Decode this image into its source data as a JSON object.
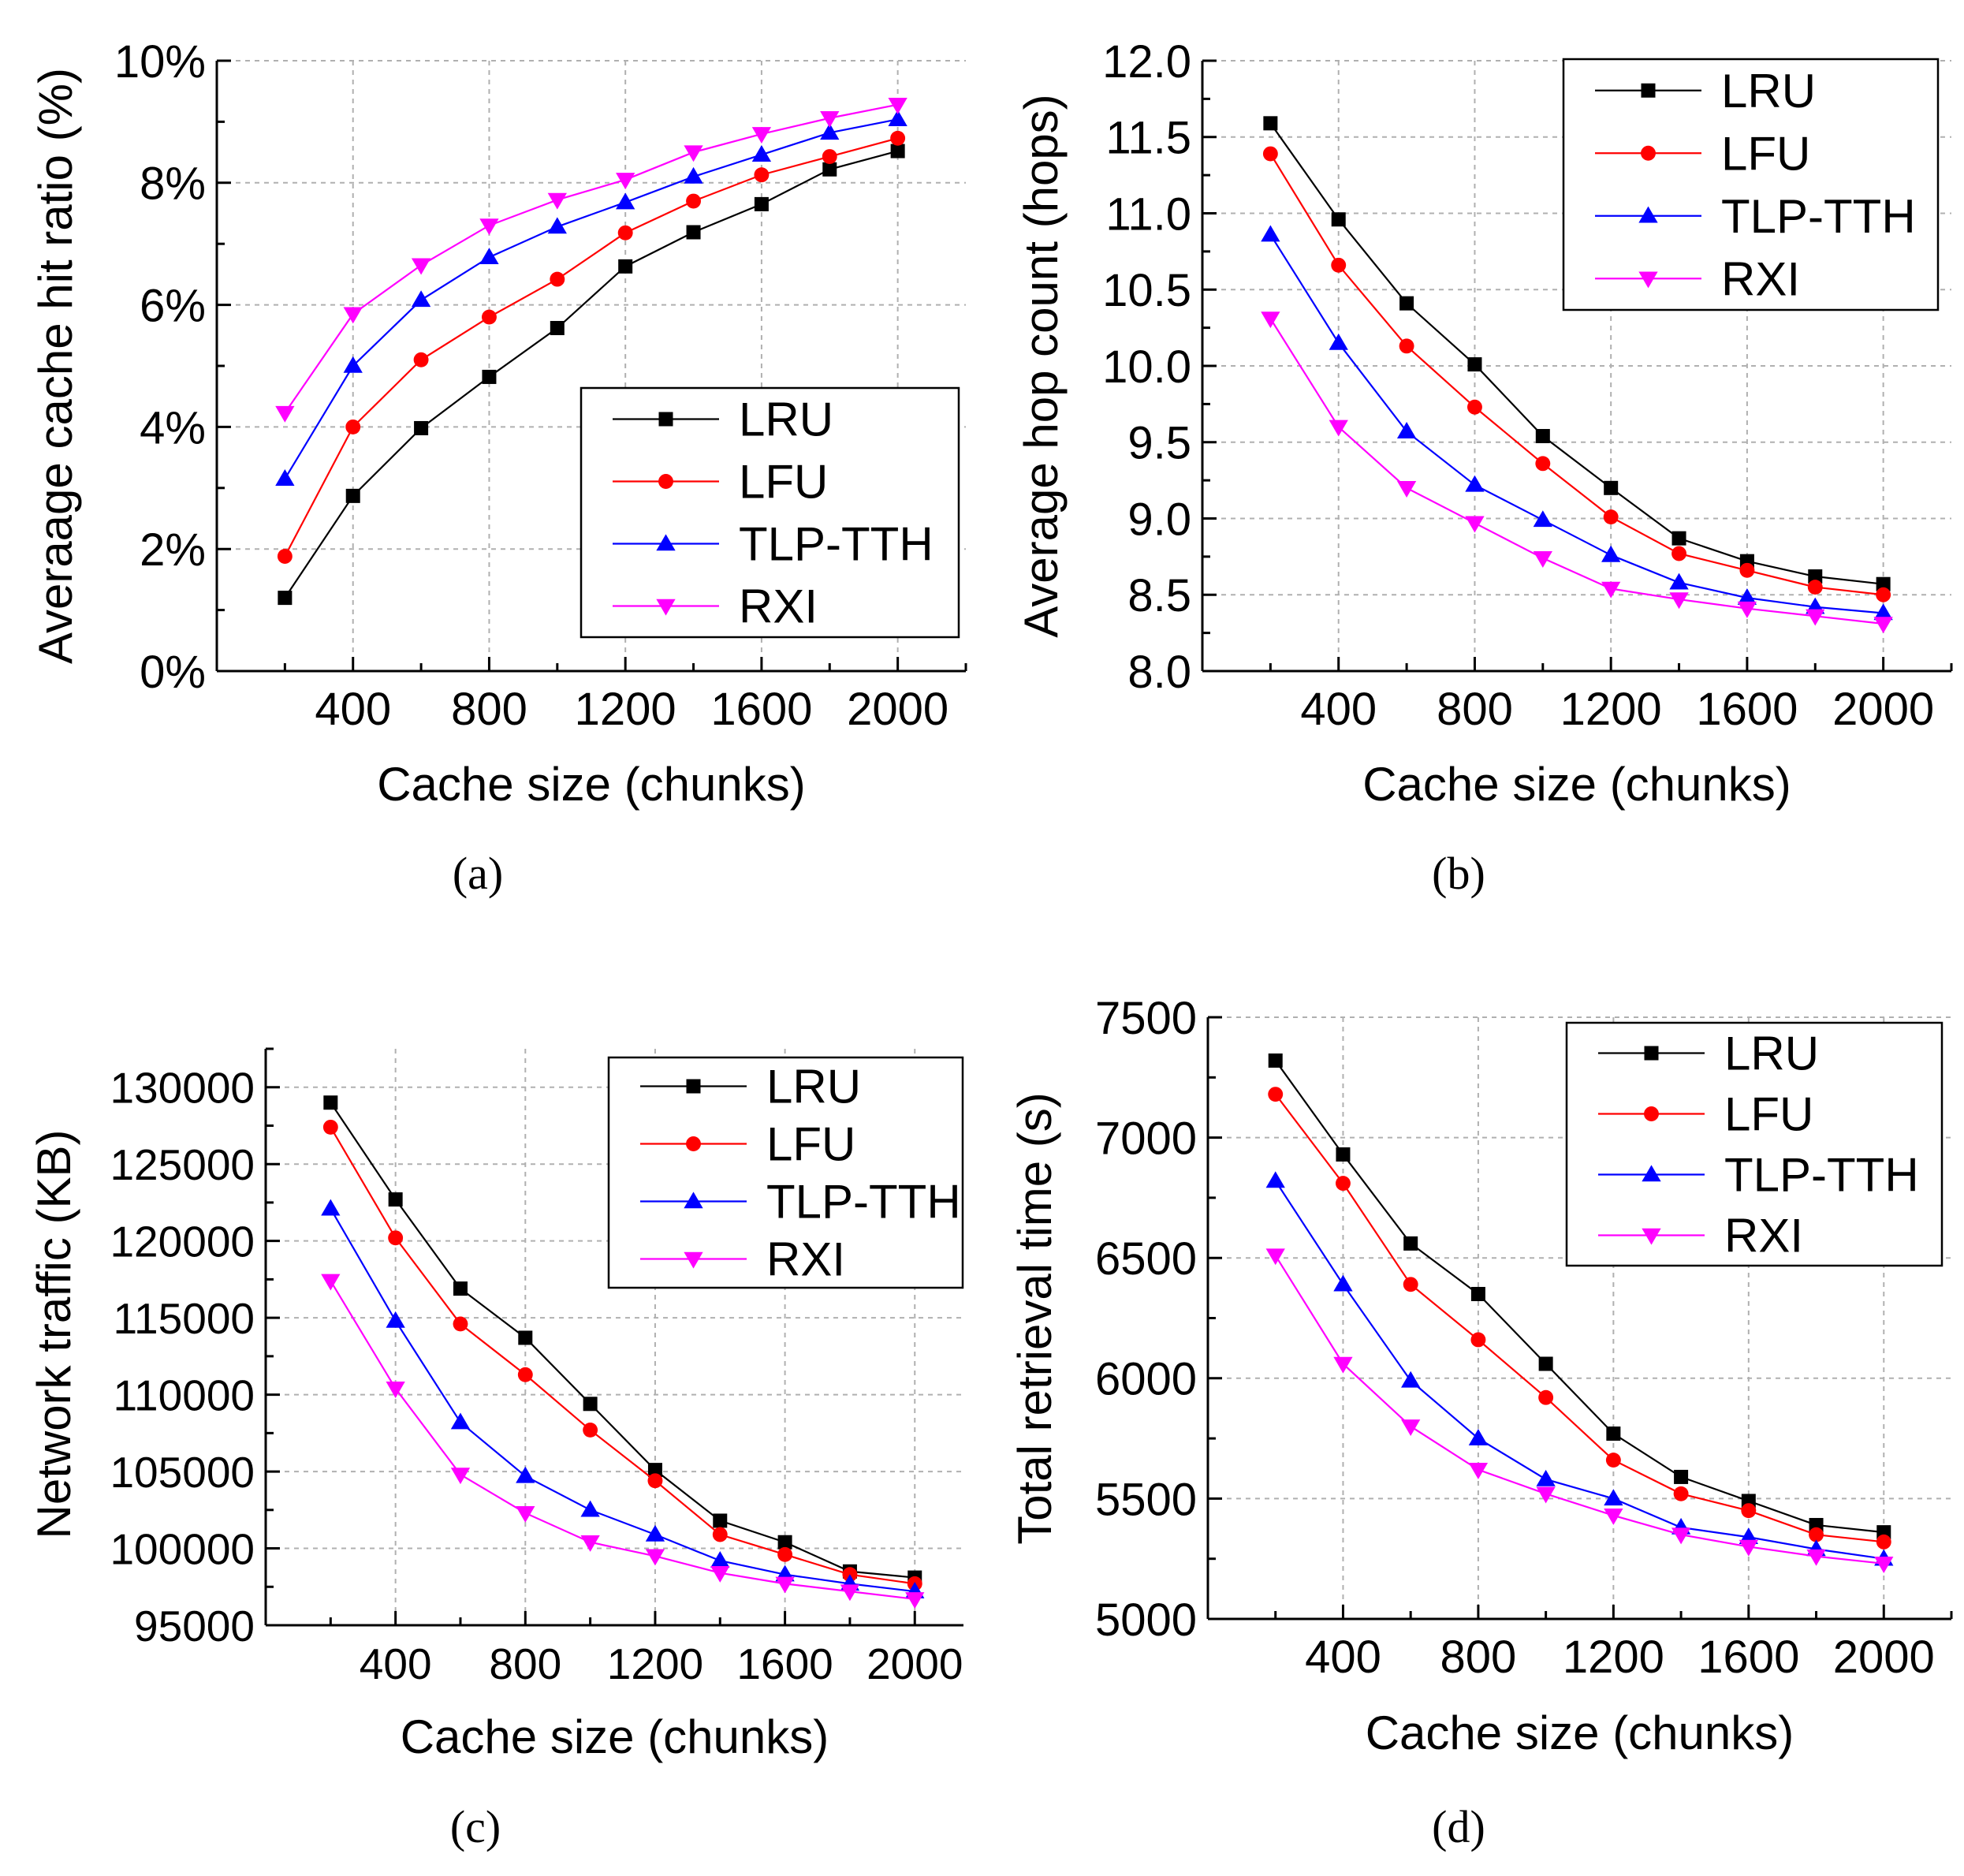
{
  "colors": {
    "LRU": "#000000",
    "LFU": "#ff0000",
    "TLP-TTH": "#0000ff",
    "RXI": "#ff00ff"
  },
  "chart_data": [
    {
      "type": "line",
      "caption": "(a)",
      "xlabel": "Cache size (chunks)",
      "ylabel": "Averaage cache hit ratio (%)",
      "x": [
        200,
        400,
        600,
        800,
        1000,
        1200,
        1400,
        1600,
        1800,
        2000
      ],
      "xlim": [
        0,
        2200
      ],
      "xticks": [
        400,
        800,
        1200,
        1600,
        2000
      ],
      "xtick_labels": [
        "400",
        "800",
        "1200",
        "1600",
        "2000"
      ],
      "ylim": [
        0,
        10
      ],
      "yticks": [
        0,
        2,
        4,
        6,
        8,
        10
      ],
      "ytick_labels": [
        "0%",
        "2%",
        "4%",
        "6%",
        "8%",
        "10%"
      ],
      "legend_position": "lower-right",
      "grid": true,
      "series": [
        {
          "name": "LRU",
          "marker": "square",
          "values": [
            1.2,
            2.87,
            3.98,
            4.82,
            5.62,
            6.63,
            7.19,
            7.65,
            8.22,
            8.52
          ]
        },
        {
          "name": "LFU",
          "marker": "circle",
          "values": [
            1.88,
            4.0,
            5.1,
            5.8,
            6.42,
            7.18,
            7.7,
            8.13,
            8.43,
            8.73
          ]
        },
        {
          "name": "TLP-TTH",
          "marker": "triangle-up",
          "values": [
            3.15,
            5.0,
            6.08,
            6.78,
            7.28,
            7.68,
            8.1,
            8.46,
            8.82,
            9.04
          ]
        },
        {
          "name": "RXI",
          "marker": "triangle-down",
          "values": [
            4.23,
            5.85,
            6.65,
            7.3,
            7.72,
            8.05,
            8.5,
            8.8,
            9.06,
            9.28
          ]
        }
      ]
    },
    {
      "type": "line",
      "caption": "(b)",
      "xlabel": "Cache size (chunks)",
      "ylabel": "Average hop count (hops)",
      "x": [
        200,
        400,
        600,
        800,
        1000,
        1200,
        1400,
        1600,
        1800,
        2000
      ],
      "xlim": [
        0,
        2200
      ],
      "xticks": [
        400,
        800,
        1200,
        1600,
        2000
      ],
      "xtick_labels": [
        "400",
        "800",
        "1200",
        "1600",
        "2000"
      ],
      "ylim": [
        8.0,
        12.0
      ],
      "yticks": [
        8.0,
        8.5,
        9.0,
        9.5,
        10.0,
        10.5,
        11.0,
        11.5,
        12.0
      ],
      "ytick_labels": [
        "8.0",
        "8.5",
        "9.0",
        "9.5",
        "10.0",
        "10.5",
        "11.0",
        "11.5",
        "12.0"
      ],
      "legend_position": "top-right",
      "grid": true,
      "series": [
        {
          "name": "LRU",
          "marker": "square",
          "values": [
            11.59,
            10.96,
            10.41,
            10.01,
            9.54,
            9.2,
            8.87,
            8.72,
            8.62,
            8.57
          ]
        },
        {
          "name": "LFU",
          "marker": "circle",
          "values": [
            11.39,
            10.66,
            10.13,
            9.73,
            9.36,
            9.01,
            8.77,
            8.66,
            8.55,
            8.5
          ]
        },
        {
          "name": "TLP-TTH",
          "marker": "triangle-up",
          "values": [
            10.86,
            10.15,
            9.57,
            9.22,
            8.99,
            8.76,
            8.58,
            8.48,
            8.42,
            8.38
          ]
        },
        {
          "name": "RXI",
          "marker": "triangle-down",
          "values": [
            10.31,
            9.6,
            9.2,
            8.97,
            8.74,
            8.54,
            8.47,
            8.41,
            8.36,
            8.31
          ]
        }
      ]
    },
    {
      "type": "line",
      "caption": "(c)",
      "xlabel": "Cache size (chunks)",
      "ylabel": "Network traffic (KB)",
      "x": [
        200,
        400,
        600,
        800,
        1000,
        1200,
        1400,
        1600,
        1800,
        2000
      ],
      "xlim": [
        0,
        2150
      ],
      "xticks": [
        400,
        800,
        1200,
        1600,
        2000
      ],
      "xtick_labels": [
        "400",
        "800",
        "1200",
        "1600",
        "2000"
      ],
      "ylim": [
        95000,
        132500
      ],
      "yticks": [
        95000,
        100000,
        105000,
        110000,
        115000,
        120000,
        125000,
        130000
      ],
      "ytick_labels": [
        "95000",
        "100000",
        "105000",
        "110000",
        "115000",
        "120000",
        "125000",
        "130000"
      ],
      "legend_position": "top-right",
      "grid": true,
      "series": [
        {
          "name": "LRU",
          "marker": "square",
          "values": [
            129000,
            122700,
            116900,
            113700,
            109400,
            105100,
            101800,
            100400,
            98500,
            98100
          ]
        },
        {
          "name": "LFU",
          "marker": "circle",
          "values": [
            127400,
            120200,
            114600,
            111300,
            107700,
            104400,
            100900,
            99600,
            98300,
            97700
          ]
        },
        {
          "name": "TLP-TTH",
          "marker": "triangle-up",
          "values": [
            122100,
            114800,
            108200,
            104700,
            102500,
            100900,
            99200,
            98300,
            97700,
            97200
          ]
        },
        {
          "name": "RXI",
          "marker": "triangle-down",
          "values": [
            117400,
            110400,
            104800,
            102300,
            100400,
            99500,
            98400,
            97700,
            97200,
            96700
          ]
        }
      ]
    },
    {
      "type": "line",
      "caption": "(d)",
      "xlabel": "Cache size (chunks)",
      "ylabel": "Total retrieval time (s)",
      "x": [
        200,
        400,
        600,
        800,
        1000,
        1200,
        1400,
        1600,
        1800,
        2000
      ],
      "xlim": [
        0,
        2200
      ],
      "xticks": [
        400,
        800,
        1200,
        1600,
        2000
      ],
      "xtick_labels": [
        "400",
        "800",
        "1200",
        "1600",
        "2000"
      ],
      "ylim": [
        5000,
        7500
      ],
      "yticks": [
        5000,
        5500,
        6000,
        6500,
        7000,
        7500
      ],
      "ytick_labels": [
        "5000",
        "5500",
        "6000",
        "6500",
        "7000",
        "7500"
      ],
      "legend_position": "top-right",
      "grid": true,
      "series": [
        {
          "name": "LRU",
          "marker": "square",
          "values": [
            7320,
            6930,
            6560,
            6350,
            6060,
            5770,
            5590,
            5490,
            5390,
            5360
          ]
        },
        {
          "name": "LFU",
          "marker": "circle",
          "values": [
            7180,
            6810,
            6390,
            6160,
            5920,
            5660,
            5520,
            5450,
            5350,
            5320
          ]
        },
        {
          "name": "TLP-TTH",
          "marker": "triangle-up",
          "values": [
            6820,
            6390,
            5990,
            5750,
            5580,
            5500,
            5380,
            5340,
            5290,
            5250
          ]
        },
        {
          "name": "RXI",
          "marker": "triangle-down",
          "values": [
            6510,
            6060,
            5800,
            5620,
            5520,
            5430,
            5350,
            5300,
            5260,
            5230
          ]
        }
      ]
    }
  ]
}
